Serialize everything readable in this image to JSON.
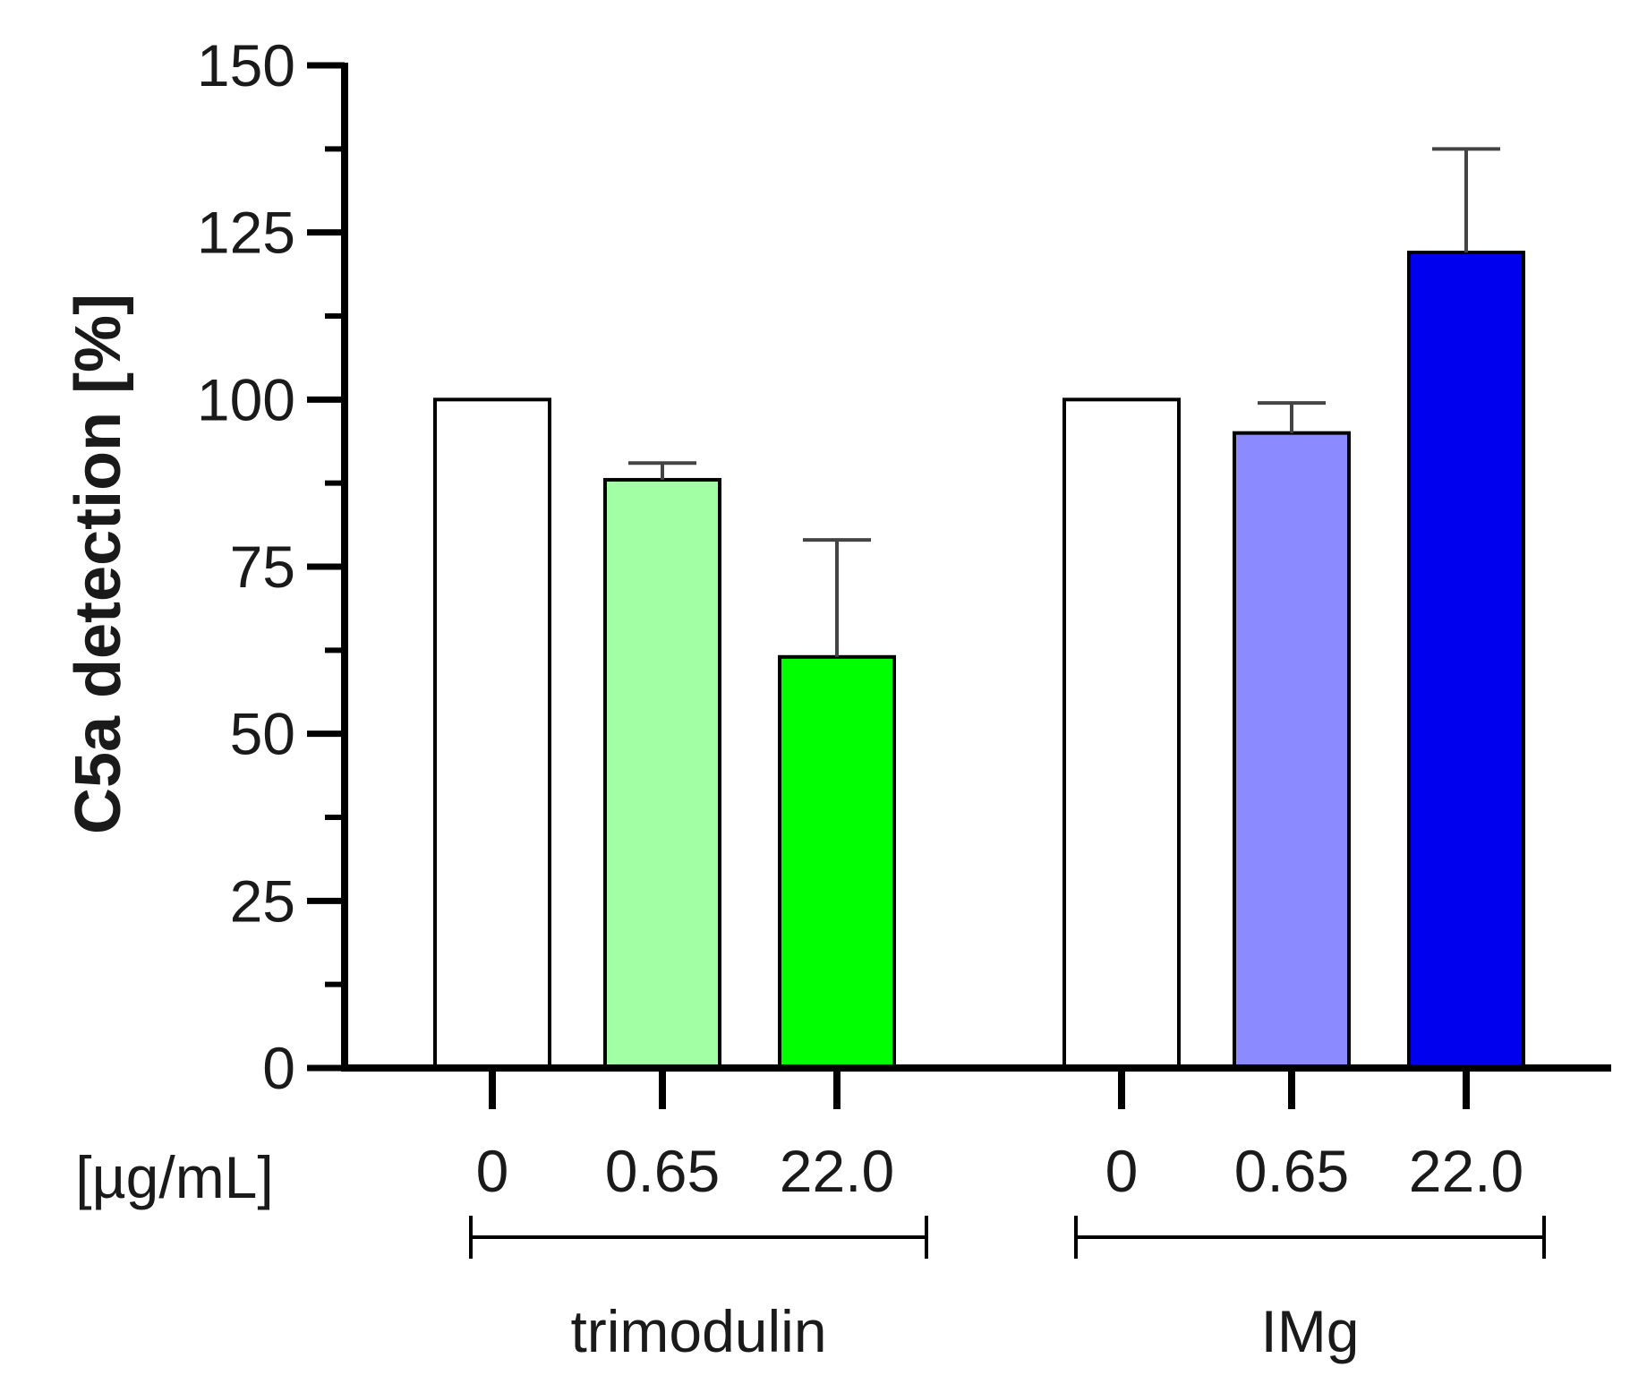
{
  "chart_data": {
    "type": "bar",
    "title": "",
    "ylabel": "C5a detection [%]",
    "xlabel": "",
    "unit_label": "[µg/mL]",
    "ylim": [
      0,
      150
    ],
    "yticks": [
      0,
      25,
      50,
      75,
      100,
      125,
      150
    ],
    "yticks_labels": [
      "0",
      "25",
      "50",
      "75",
      "100",
      "125",
      "150"
    ],
    "groups": [
      {
        "name": "trimodulin",
        "bars": [
          {
            "category": "0",
            "value": 100,
            "error": 0,
            "color": "#ffffff"
          },
          {
            "category": "0.65",
            "value": 88,
            "error": 2.5,
            "color": "#a3ffa3"
          },
          {
            "category": "22.0",
            "value": 61.5,
            "error": 17.5,
            "color": "#00ff00"
          }
        ]
      },
      {
        "name": "IMg",
        "bars": [
          {
            "category": "0",
            "value": 100,
            "error": 0,
            "color": "#ffffff"
          },
          {
            "category": "0.65",
            "value": 95,
            "error": 4.5,
            "color": "#8b8bff"
          },
          {
            "category": "22.0",
            "value": 122,
            "error": 15.5,
            "color": "#0000ee"
          }
        ]
      }
    ]
  }
}
